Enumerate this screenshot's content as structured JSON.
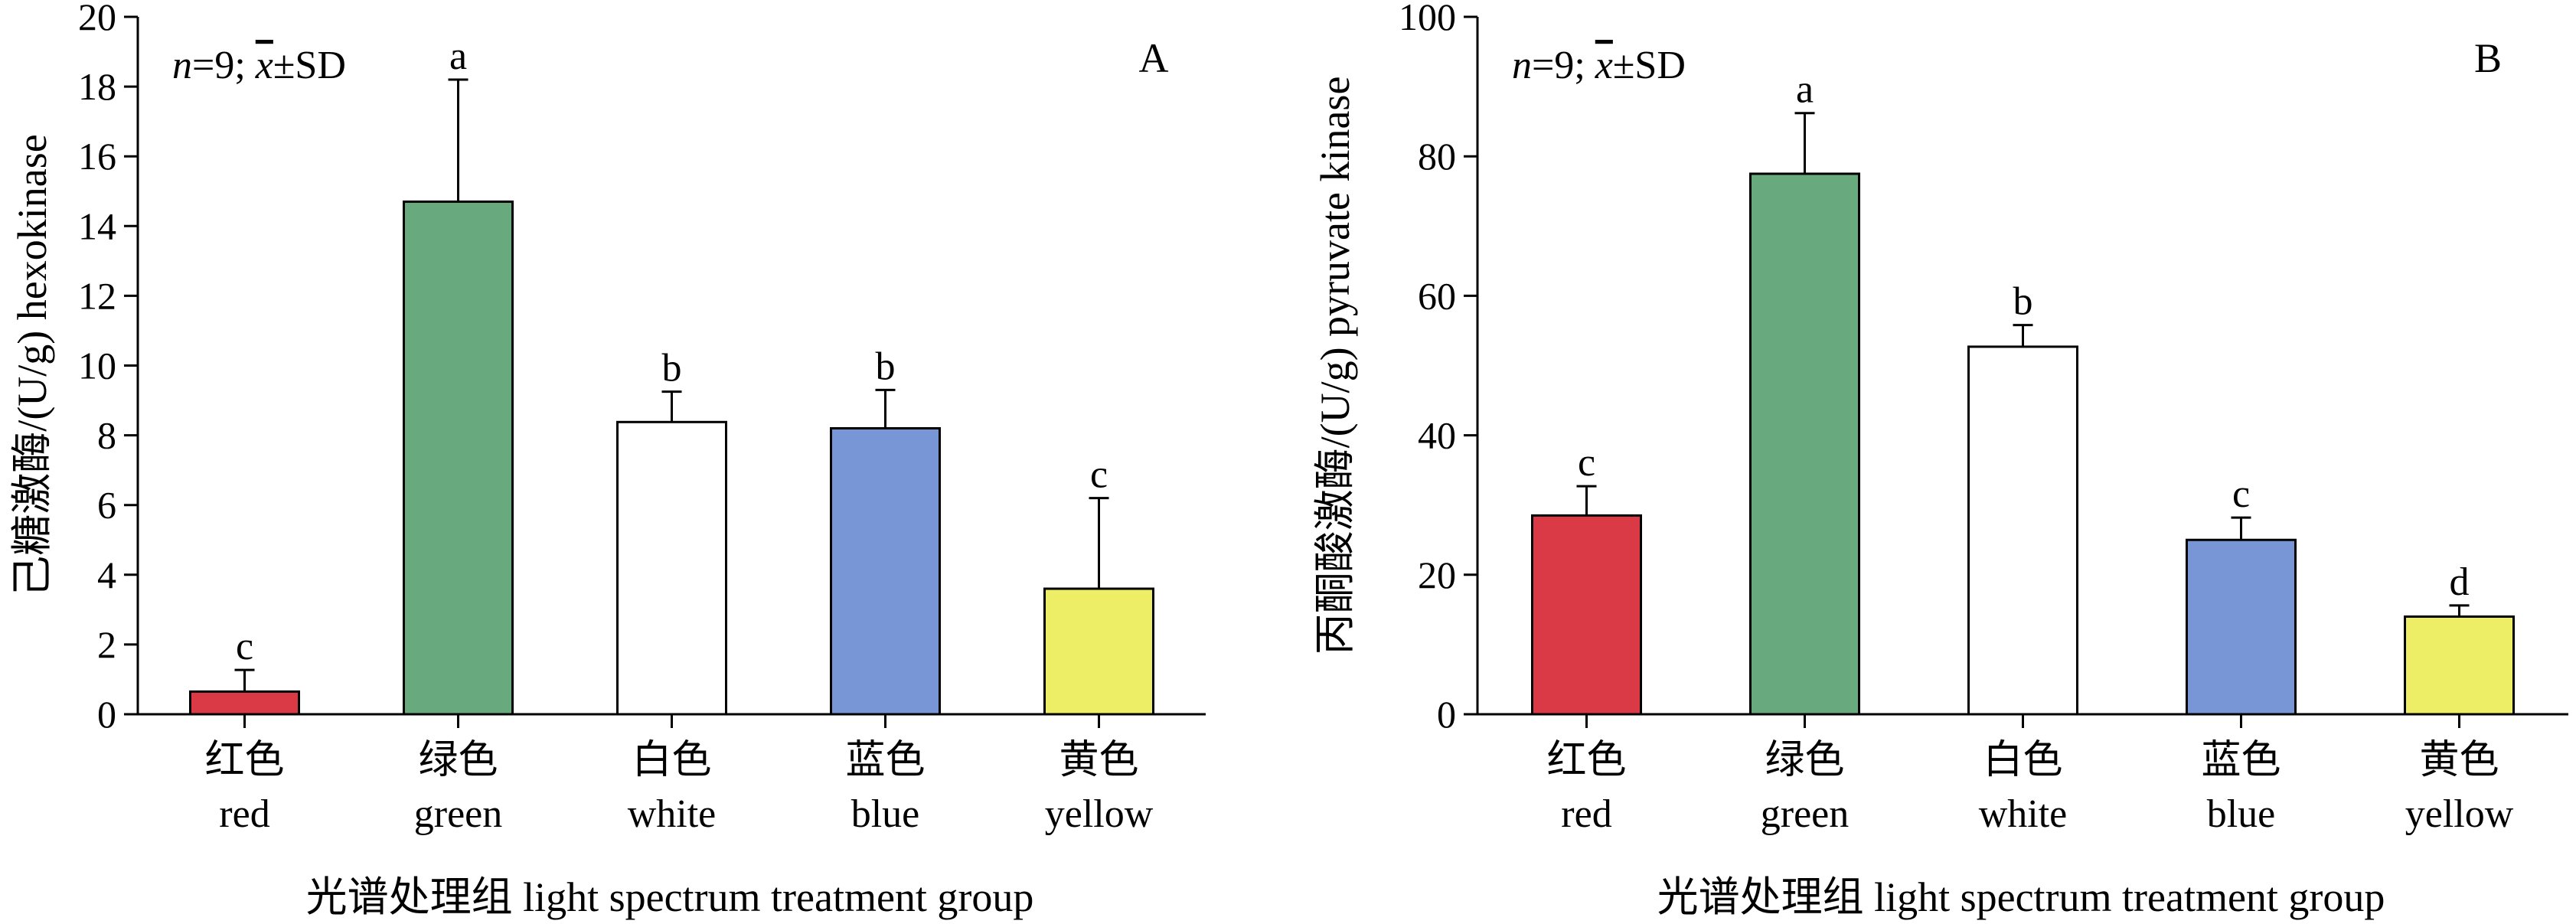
{
  "chart_data": [
    {
      "type": "bar",
      "panel_label": "A",
      "annotation": {
        "n": "n",
        "n_rest": "=9; ",
        "xbar": "x",
        "sd": "±SD"
      },
      "categories": [
        {
          "cn": "红色",
          "en": "red"
        },
        {
          "cn": "绿色",
          "en": "green"
        },
        {
          "cn": "白色",
          "en": "white"
        },
        {
          "cn": "蓝色",
          "en": "blue"
        },
        {
          "cn": "黄色",
          "en": "yellow"
        }
      ],
      "values": [
        0.65,
        14.7,
        8.38,
        8.2,
        3.6
      ],
      "errors": [
        0.62,
        3.5,
        0.87,
        1.1,
        2.6
      ],
      "significance": [
        "c",
        "a",
        "b",
        "b",
        "c"
      ],
      "colors": [
        "#d93a46",
        "#68aa7d",
        "#ffffff",
        "#7896d6",
        "#eded66"
      ],
      "ylabel": "己糖激酶/(U/g) hexokinase",
      "xlabel": "光谱处理组 light spectrum treatment group",
      "ylim": [
        0,
        20
      ],
      "yticks": [
        0,
        2,
        4,
        6,
        8,
        10,
        12,
        14,
        16,
        18,
        20
      ],
      "grid": false
    },
    {
      "type": "bar",
      "panel_label": "B",
      "annotation": {
        "n": "n",
        "n_rest": "=9; ",
        "xbar": "x",
        "sd": "±SD"
      },
      "categories": [
        {
          "cn": "红色",
          "en": "red"
        },
        {
          "cn": "绿色",
          "en": "green"
        },
        {
          "cn": "白色",
          "en": "white"
        },
        {
          "cn": "蓝色",
          "en": "blue"
        },
        {
          "cn": "黄色",
          "en": "yellow"
        }
      ],
      "values": [
        28.5,
        77.5,
        52.7,
        25.0,
        14.0
      ],
      "errors": [
        4.2,
        8.7,
        3.1,
        3.2,
        1.6
      ],
      "significance": [
        "c",
        "a",
        "b",
        "c",
        "d"
      ],
      "colors": [
        "#d93a46",
        "#68aa7d",
        "#ffffff",
        "#7896d6",
        "#eded66"
      ],
      "ylabel": "丙酮酸激酶/(U/g) pyruvate kinase",
      "xlabel": "光谱处理组 light spectrum treatment group",
      "ylim": [
        0,
        100
      ],
      "yticks": [
        0,
        20,
        40,
        60,
        80,
        100
      ],
      "grid": false
    }
  ]
}
